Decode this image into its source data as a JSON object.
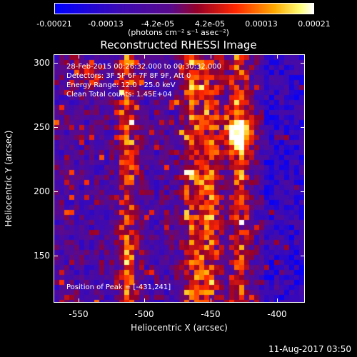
{
  "colorbar": {
    "ticks": [
      "-0.00021",
      "-0.00013",
      "-4.2e-05",
      "4.2e-05",
      "0.00013",
      "0.00021"
    ],
    "unit": "(photons cm⁻² s⁻¹ asec⁻²)"
  },
  "title": "Reconstructed RHESSI Image",
  "info": {
    "time": "28-Feb-2015 00:26:32.000 to 00:30:32.000",
    "detectors": "Detectors: 3F 5F 6F 7F 8F 9F, Att 0",
    "energy": "Energy Range: 12.0 - 25.0 keV",
    "clean": "Clean     Total counts: 1.45E+04",
    "peak": "Position of Peak = [-431,241]"
  },
  "axes": {
    "xlabel": "Heliocentric X (arcsec)",
    "ylabel": "Heliocentric Y (arcsec)",
    "xticks": [
      "-550",
      "-500",
      "-450",
      "-400"
    ],
    "yticks": [
      "300",
      "250",
      "200",
      "150"
    ],
    "xlim": [
      -570,
      -377
    ],
    "ylim": [
      112,
      306
    ]
  },
  "timestamp": "11-Aug-2017 03:50",
  "colors": {
    "low": "#0000ff",
    "mid": "#5a0a8c",
    "high": "#ff3000",
    "peak": "#ffff80"
  }
}
